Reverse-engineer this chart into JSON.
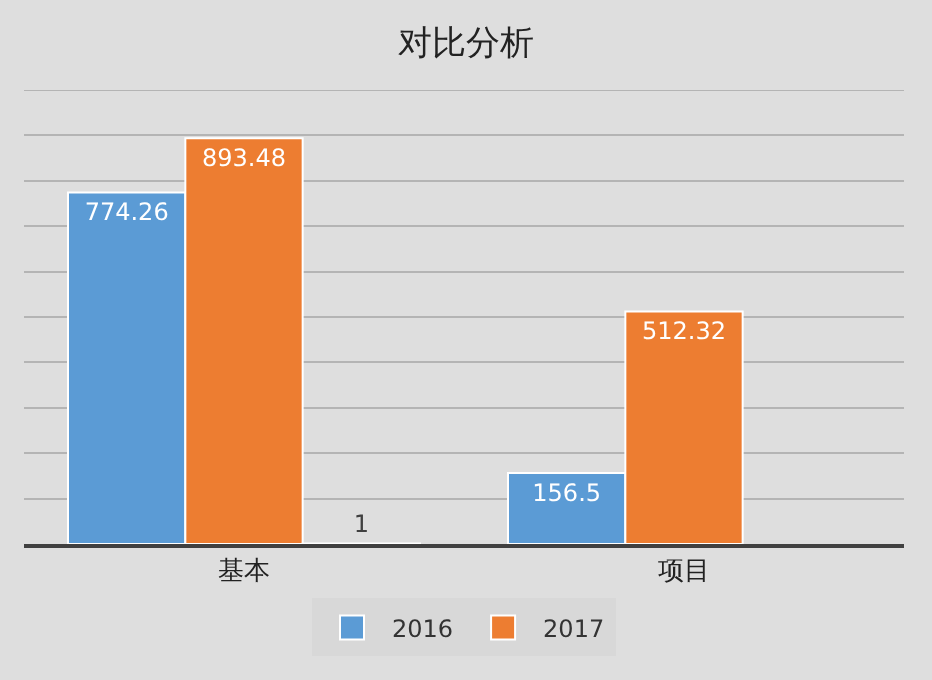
{
  "chart_data": {
    "type": "bar",
    "title": "对比分析",
    "categories": [
      "基本",
      "项目"
    ],
    "series": [
      {
        "name": "2016",
        "color": "#5b9bd5",
        "values": [
          774.26,
          156.5
        ]
      },
      {
        "name": "2017",
        "color": "#ed7d31",
        "values": [
          893.48,
          512.32
        ]
      },
      {
        "color": "#f2f2f2",
        "values": [
          1,
          null
        ]
      }
    ],
    "ylim": [
      0,
      1000
    ],
    "yticks": [
      {
        "value": 0,
        "label": null
      },
      {
        "value": 100,
        "label": null
      },
      {
        "value": 200,
        "label": null
      },
      {
        "value": 300,
        "label": null
      },
      {
        "value": 400,
        "label": null
      },
      {
        "value": 500,
        "label": null
      },
      {
        "value": 600,
        "label": null
      },
      {
        "value": 700,
        "label": null
      },
      {
        "value": 800,
        "label": null
      },
      {
        "value": 900,
        "label": null
      },
      {
        "value": 1000,
        "label": null
      }
    ],
    "tick_labels": "x",
    "grid": "y",
    "legend": "bottom",
    "data_labels": true
  }
}
